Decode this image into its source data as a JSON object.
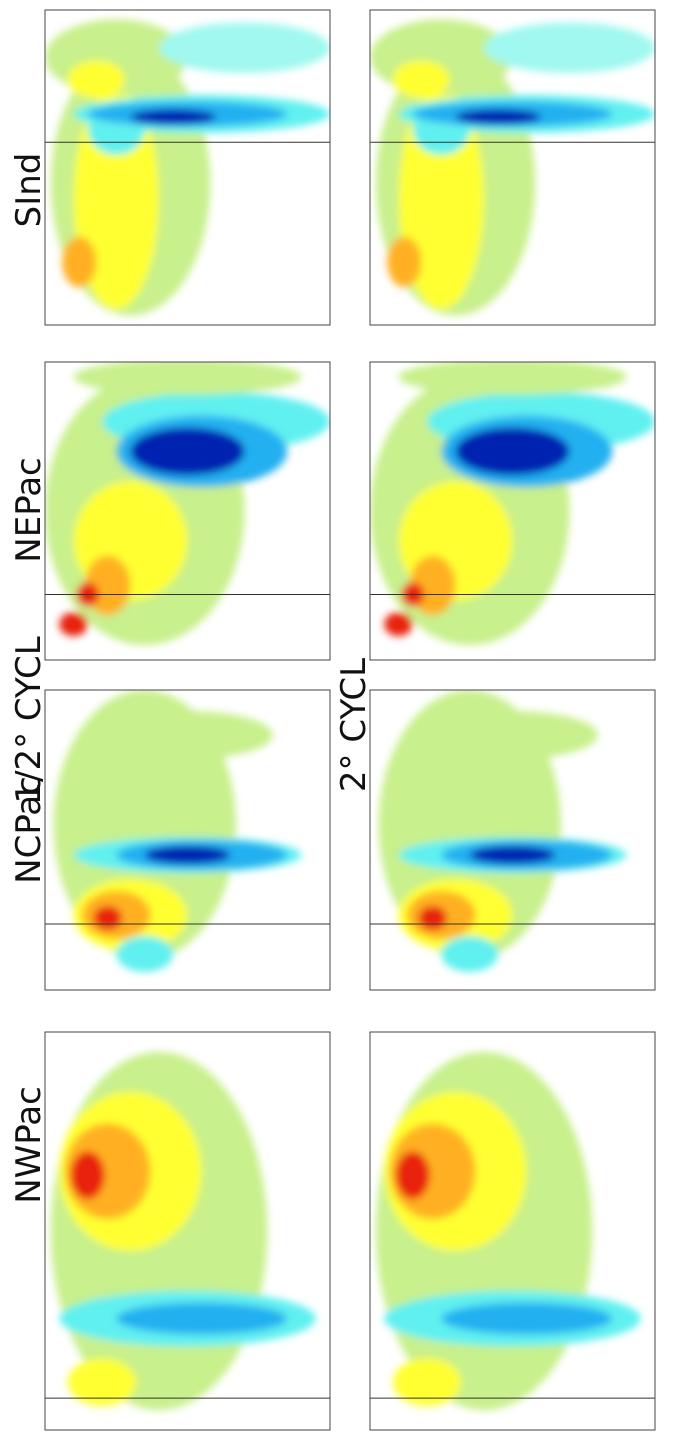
{
  "labels": {
    "row_top": "1/2° CYCL",
    "row_bottom": "2° CYCL",
    "regions": [
      "SInd",
      "NEPac",
      "NCPac",
      "NWPac"
    ]
  }
}
